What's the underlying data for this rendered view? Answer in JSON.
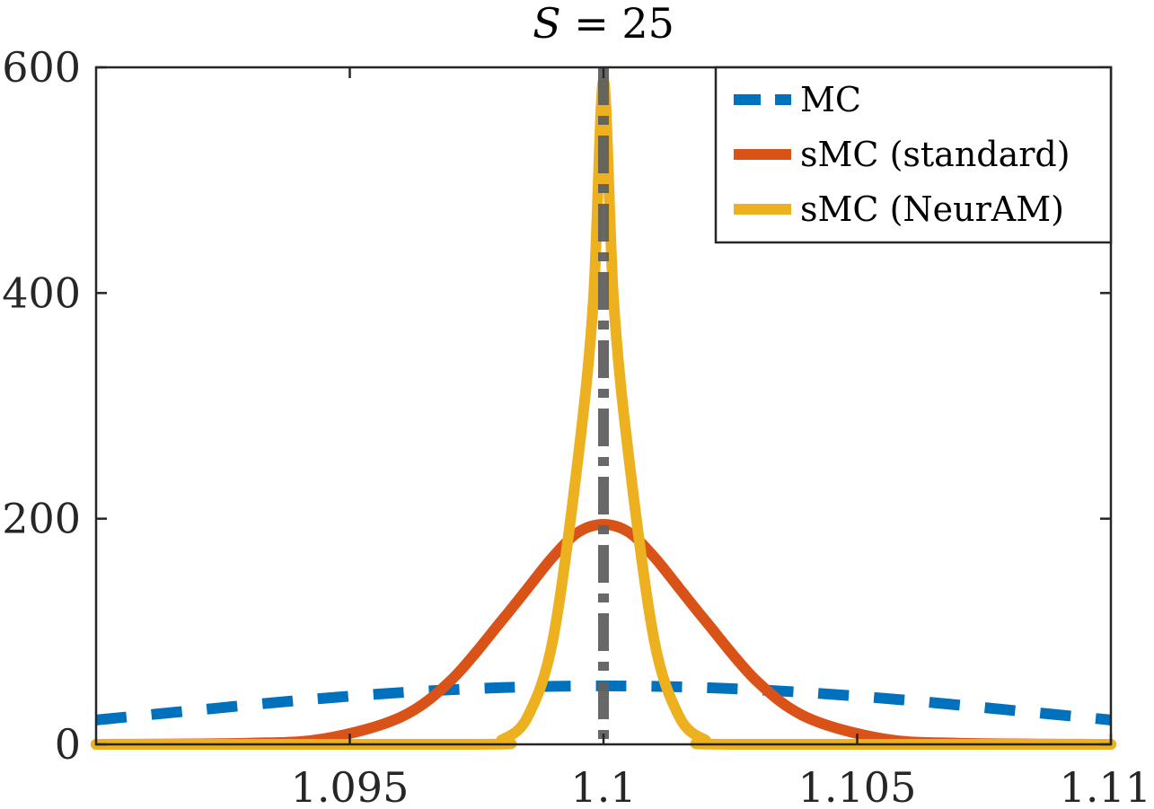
{
  "chart_data": {
    "type": "line",
    "title": "S = 25",
    "title_var": "S",
    "title_rest": " = 25",
    "xlabel": "",
    "ylabel": "",
    "xlim": [
      1.09,
      1.11
    ],
    "ylim": [
      0,
      600
    ],
    "xticks": [
      {
        "value": 1.095,
        "label": "1.095"
      },
      {
        "value": 1.1,
        "label": "1.1"
      },
      {
        "value": 1.105,
        "label": "1.105"
      },
      {
        "value": 1.11,
        "label": "1.11"
      }
    ],
    "yticks": [
      {
        "value": 0,
        "label": "0"
      },
      {
        "value": 200,
        "label": "200"
      },
      {
        "value": 400,
        "label": "400"
      },
      {
        "value": 600,
        "label": "600"
      }
    ],
    "grid": false,
    "legend_position": "top-right",
    "reference_line": {
      "x": 1.1,
      "color": "#606060",
      "style": "dash-dot"
    },
    "series": [
      {
        "name": "MC",
        "color": "#0072BD",
        "style": "dashed",
        "x": [
          1.09,
          1.092,
          1.094,
          1.096,
          1.098,
          1.1,
          1.102,
          1.104,
          1.106,
          1.108,
          1.11
        ],
        "y": [
          21.6,
          30.4,
          39.0,
          45.9,
          50.3,
          51.8,
          50.3,
          45.9,
          39.0,
          30.4,
          21.6
        ]
      },
      {
        "name": "sMC (standard)",
        "color": "#D95319",
        "style": "solid",
        "x": [
          1.09,
          1.093,
          1.0945,
          1.096,
          1.097,
          1.098,
          1.0985,
          1.099,
          1.0995,
          1.1,
          1.1005,
          1.101,
          1.1015,
          1.102,
          1.103,
          1.104,
          1.1055,
          1.107,
          1.11
        ],
        "y": [
          0,
          1,
          5,
          24,
          57,
          110,
          138,
          166,
          188,
          195,
          188,
          166,
          138,
          110,
          57,
          24,
          5,
          1,
          0
        ]
      },
      {
        "name": "sMC (NeurAM)",
        "color": "#EDB120",
        "style": "solid",
        "x": [
          1.09,
          1.0975,
          1.098,
          1.0985,
          1.099,
          1.0995,
          1.0998,
          1.1,
          1.1002,
          1.1005,
          1.101,
          1.1015,
          1.102,
          1.1025,
          1.11
        ],
        "y": [
          0,
          0,
          4,
          24,
          92,
          254,
          393,
          588,
          393,
          254,
          92,
          24,
          4,
          0,
          0
        ]
      }
    ]
  }
}
